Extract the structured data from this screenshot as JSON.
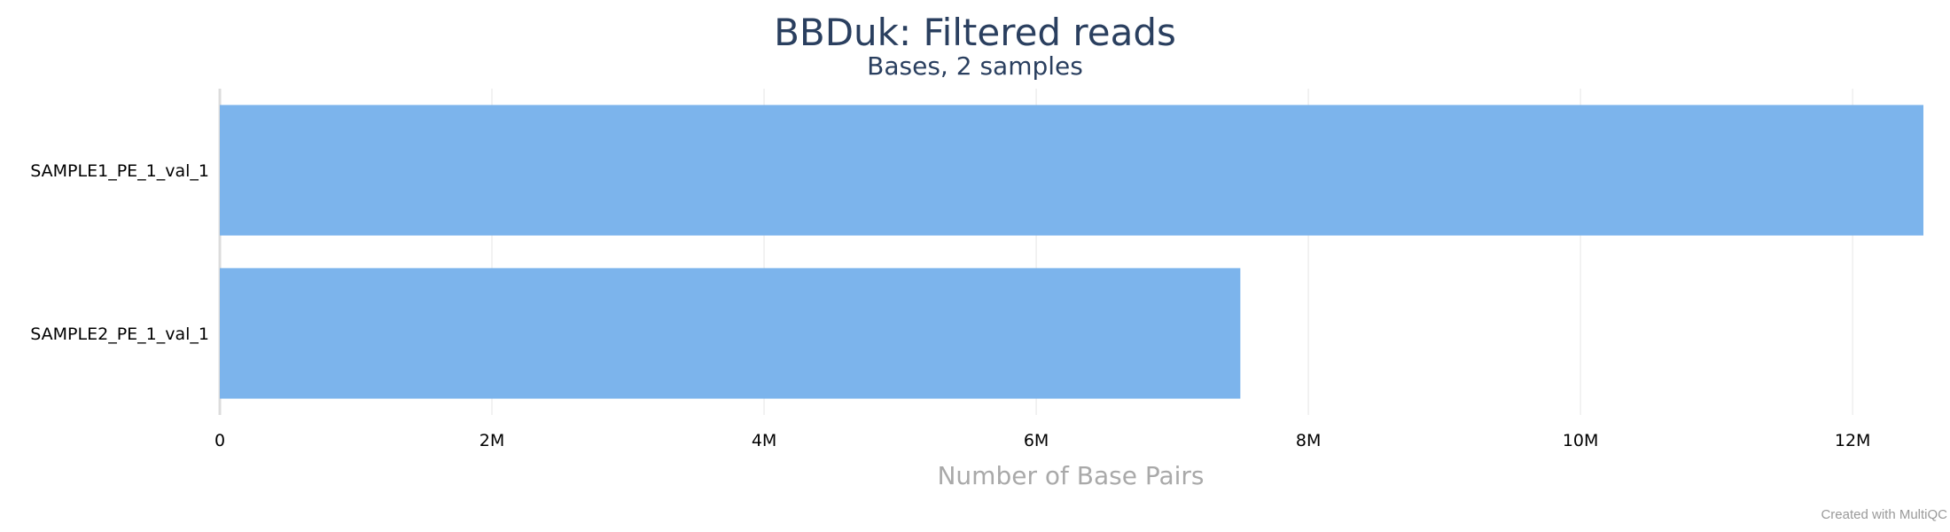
{
  "chart_data": {
    "type": "bar",
    "orientation": "horizontal",
    "title": "BBDuk: Filtered reads",
    "subtitle": "Bases, 2 samples",
    "xlabel": "Number of Base Pairs",
    "ylabel": "",
    "categories": [
      "SAMPLE1_PE_1_val_1",
      "SAMPLE2_PE_1_val_1"
    ],
    "values": [
      12520000,
      7500000
    ],
    "xlim": [
      0,
      12520000
    ],
    "xticks": [
      0,
      2000000,
      4000000,
      6000000,
      8000000,
      10000000,
      12000000
    ],
    "xtick_labels": [
      "0",
      "2M",
      "4M",
      "6M",
      "8M",
      "10M",
      "12M"
    ],
    "bar_color": "#7cb4ec",
    "grid": true,
    "legend": "none"
  },
  "footer": {
    "credit": "Created with MultiQC"
  }
}
